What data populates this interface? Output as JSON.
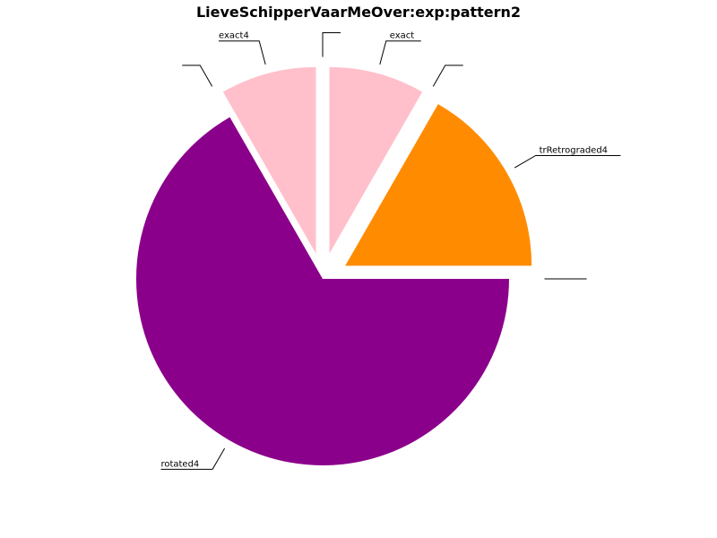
{
  "chart_data": {
    "type": "pie",
    "title": "LieveSchipperVaarMeOver:exp:pattern2",
    "slices": [
      {
        "label": "trRetrograded4",
        "value": 16.7,
        "color": "#ff8c00",
        "exploded": true
      },
      {
        "label": "",
        "value": 0,
        "color": "#ffffff",
        "exploded": true
      },
      {
        "label": "exact",
        "value": 8.3,
        "color": "#ffc0cb",
        "exploded": true
      },
      {
        "label": "",
        "value": 0,
        "color": "#ffffff",
        "exploded": true
      },
      {
        "label": "exact4",
        "value": 8.3,
        "color": "#ffc0cb",
        "exploded": true
      },
      {
        "label": "",
        "value": 0,
        "color": "#ffffff",
        "exploded": true
      },
      {
        "label": "rotated4",
        "value": 66.7,
        "color": "#8b008b",
        "exploded": false
      },
      {
        "label": "",
        "value": 0,
        "color": "#ffffff",
        "exploded": true
      }
    ]
  }
}
